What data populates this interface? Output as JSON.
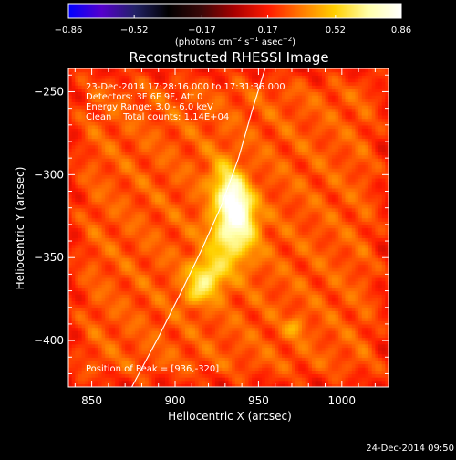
{
  "chart_data": {
    "type": "heatmap",
    "title": "Reconstructed RHESSI Image",
    "xlabel": "Heliocentric X (arcsec)",
    "ylabel": "Heliocentric Y (arcsec)",
    "xlim": [
      836,
      1028
    ],
    "ylim": [
      -428,
      -236
    ],
    "x_ticks": [
      850,
      900,
      950,
      1000
    ],
    "x_tick_labels": [
      "850",
      "900",
      "950",
      "1000"
    ],
    "y_ticks": [
      -250,
      -300,
      -350,
      -400
    ],
    "y_tick_labels": [
      "−250",
      "−300",
      "−350",
      "−400"
    ],
    "colorbar": {
      "range": [
        -0.86,
        0.86
      ],
      "ticks": [
        -0.86,
        -0.52,
        -0.17,
        0.17,
        0.52,
        0.86
      ],
      "tick_labels": [
        "−0.86",
        "−0.52",
        "−0.17",
        "0.17",
        "0.52",
        "0.86"
      ],
      "unit_main": "(photons cm",
      "unit_sup1": "−2",
      "unit_mid": " s",
      "unit_sup2": "−1",
      "unit_mid2": " asec",
      "unit_sup3": "−2",
      "unit_end": ")",
      "colors": [
        "#0000ff",
        "#5500cc",
        "#222266",
        "#000000",
        "#3a0808",
        "#aa0000",
        "#ff1a00",
        "#ff7a00",
        "#ffd000",
        "#ffffa8",
        "#ffffff"
      ]
    },
    "annotations": {
      "line1": "23-Dec-2014 17:28:16.000 to 17:31:36.000",
      "line2": "Detectors: 3F 6F 9F, Att 0",
      "line3": "Energy Range: 3.0 - 6.0 keV",
      "line4": "Clean    Total counts: 1.14E+04",
      "peak": "Position of Peak = [936,-320]"
    },
    "peak": {
      "x": 936,
      "y": -320,
      "value": 0.86
    },
    "sources": [
      {
        "x": 936,
        "y": -318,
        "sx": 7,
        "sy": 15,
        "amp": 0.7,
        "rot": -18
      },
      {
        "x": 930,
        "y": -340,
        "sx": 6,
        "sy": 11,
        "amp": 0.34,
        "rot": -35
      },
      {
        "x": 920,
        "y": -360,
        "sx": 8,
        "sy": 8,
        "amp": 0.38,
        "rot": 0
      },
      {
        "x": 912,
        "y": -372,
        "sx": 6,
        "sy": 5,
        "amp": 0.18,
        "rot": 0
      },
      {
        "x": 972,
        "y": -392,
        "sx": 4,
        "sy": 4,
        "amp": 0.16,
        "rot": 0
      }
    ],
    "background_level": 0.28,
    "limb_points": [
      [
        874,
        -428
      ],
      [
        890,
        -398
      ],
      [
        904,
        -370
      ],
      [
        916,
        -345
      ],
      [
        928,
        -318
      ],
      [
        938,
        -290
      ],
      [
        946,
        -262
      ],
      [
        954,
        -236
      ]
    ],
    "timestamp": "24-Dec-2014 09:50"
  }
}
